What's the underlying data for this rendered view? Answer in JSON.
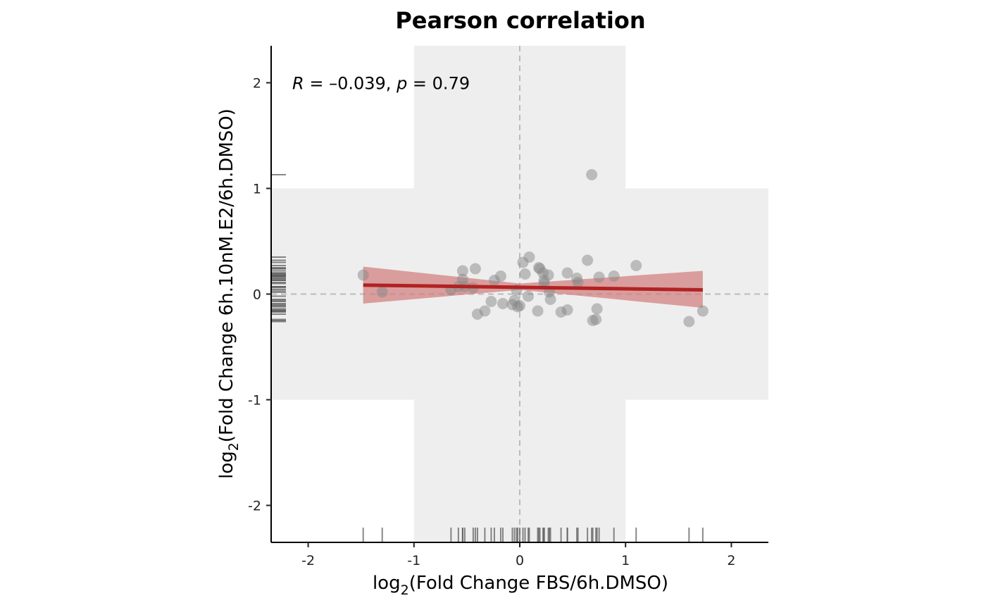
{
  "chart_data": {
    "type": "scatter",
    "title": "Pearson correlation",
    "xlabel": {
      "prefix": "log",
      "sub": "2",
      "rest": "(Fold Change FBS/6h.DMSO)"
    },
    "ylabel": {
      "prefix": "log",
      "sub": "2",
      "rest": "(Fold Change 6h.10nM.E2/6h.DMSO)"
    },
    "xlim": [
      -2.35,
      2.35
    ],
    "ylim": [
      -2.35,
      2.35
    ],
    "xticks": [
      -2,
      -1,
      0,
      1,
      2
    ],
    "yticks": [
      -2,
      -1,
      0,
      1,
      2
    ],
    "x_tick_labels": [
      "-2",
      "-1",
      "0",
      "1",
      "2"
    ],
    "y_tick_labels": [
      "-2",
      "-1",
      "0",
      "1",
      "2"
    ],
    "annotation": {
      "r_label": "R",
      "r_value": " = –0.039, ",
      "p_label": "p",
      "p_value": " = 0.79",
      "x": -2.15,
      "y": 2.0
    },
    "highlight_band": {
      "x_range": [
        -1,
        1
      ],
      "y_range": [
        -1,
        1
      ],
      "color": "#eeeeee"
    },
    "reference_lines": {
      "x": 0,
      "y": 0,
      "style": "dashed"
    },
    "point_color": "#888888",
    "regression": {
      "color": "#b22222",
      "band_color": "#d27a7a",
      "x_range": [
        -1.48,
        1.73
      ],
      "line": [
        [
          -1.48,
          0.085
        ],
        [
          1.73,
          0.04
        ]
      ],
      "band": [
        [
          -1.48,
          0.26,
          -0.09
        ],
        [
          0.0,
          0.1,
          0.04
        ],
        [
          1.73,
          0.22,
          -0.13
        ]
      ]
    },
    "points": [
      [
        -1.48,
        0.18
      ],
      [
        -1.3,
        0.02
      ],
      [
        -0.65,
        0.04
      ],
      [
        -0.58,
        0.07
      ],
      [
        -0.54,
        0.22
      ],
      [
        -0.54,
        0.14
      ],
      [
        -0.52,
        0.07
      ],
      [
        -0.44,
        0.06
      ],
      [
        -0.42,
        0.24
      ],
      [
        -0.4,
        -0.19
      ],
      [
        -0.33,
        -0.16
      ],
      [
        -0.27,
        -0.07
      ],
      [
        -0.24,
        0.13
      ],
      [
        -0.18,
        0.17
      ],
      [
        -0.16,
        -0.09
      ],
      [
        -0.07,
        -0.1
      ],
      [
        -0.05,
        -0.06
      ],
      [
        -0.03,
        0.04
      ],
      [
        -0.02,
        -0.12
      ],
      [
        0.0,
        -0.11
      ],
      [
        0.03,
        0.3
      ],
      [
        0.05,
        0.19
      ],
      [
        0.08,
        -0.02
      ],
      [
        0.09,
        0.35
      ],
      [
        0.17,
        -0.16
      ],
      [
        0.18,
        0.25
      ],
      [
        0.19,
        0.24
      ],
      [
        0.22,
        0.2
      ],
      [
        0.23,
        0.13
      ],
      [
        0.23,
        0.1
      ],
      [
        0.27,
        0.18
      ],
      [
        0.28,
        0.02
      ],
      [
        0.29,
        -0.05
      ],
      [
        0.39,
        -0.17
      ],
      [
        0.45,
        -0.15
      ],
      [
        0.45,
        0.2
      ],
      [
        0.54,
        0.15
      ],
      [
        0.55,
        0.11
      ],
      [
        0.64,
        0.32
      ],
      [
        0.68,
        1.13
      ],
      [
        0.69,
        -0.25
      ],
      [
        0.72,
        -0.24
      ],
      [
        0.73,
        -0.14
      ],
      [
        0.75,
        0.16
      ],
      [
        0.89,
        0.17
      ],
      [
        1.1,
        0.27
      ],
      [
        1.6,
        -0.26
      ],
      [
        1.73,
        -0.16
      ]
    ]
  }
}
